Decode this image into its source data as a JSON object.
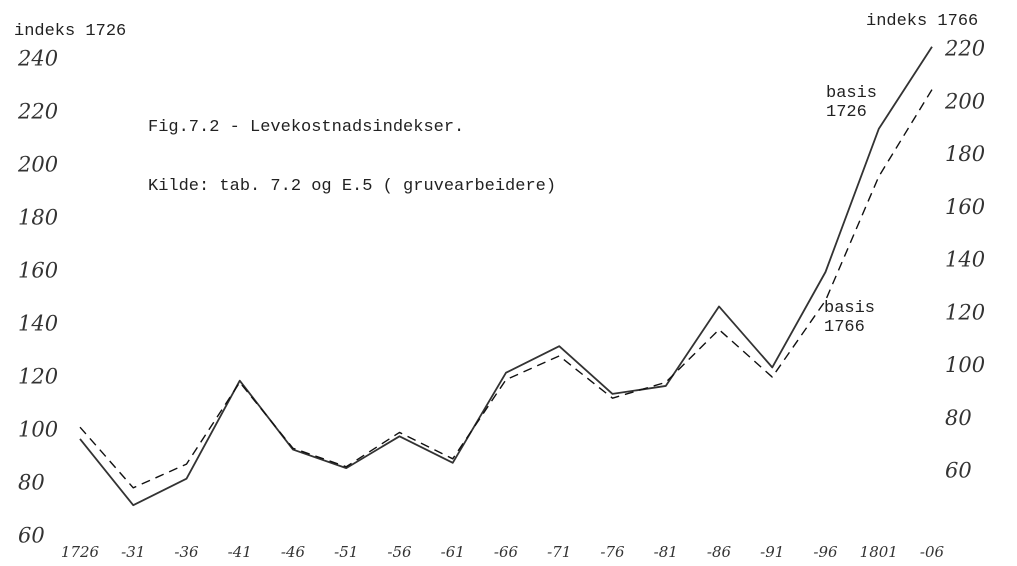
{
  "chart_data": {
    "type": "line",
    "title": "Fig.7.2 - Levekostnadsindekser.",
    "subtitle": "Kilde: tab. 7.2 og E.5 ( gruvearbeidere)",
    "ylabel": "indeks 1726",
    "y2label": "indeks 1766",
    "categories": [
      "1726",
      "-31",
      "-36",
      "-41",
      "-46",
      "-51",
      "-56",
      "-61",
      "-66",
      "-71",
      "-76",
      "-81",
      "-86",
      "-91",
      "-96",
      "1801",
      "-06"
    ],
    "series": [
      {
        "name": "basis 1726",
        "color": "#333333",
        "dash": false,
        "values": [
          97,
          72,
          82,
          119,
          93,
          86,
          98,
          88,
          122,
          132,
          114,
          117,
          147,
          124,
          160,
          214,
          245
        ]
      },
      {
        "name": "basis 1766",
        "color": "#111111",
        "dash": true,
        "axis": "y2",
        "values": [
          77,
          54,
          63,
          94,
          69,
          62,
          75,
          65,
          95,
          104,
          88,
          94,
          114,
          96,
          125,
          172,
          205
        ]
      }
    ],
    "ylim": [
      60,
      240
    ],
    "yticks": [
      60,
      80,
      100,
      120,
      140,
      160,
      180,
      200,
      220,
      240
    ],
    "y2lim": [
      60,
      220
    ],
    "y2ticks": [
      60,
      80,
      100,
      120,
      140,
      160,
      180,
      200,
      220
    ],
    "grid": false
  }
}
